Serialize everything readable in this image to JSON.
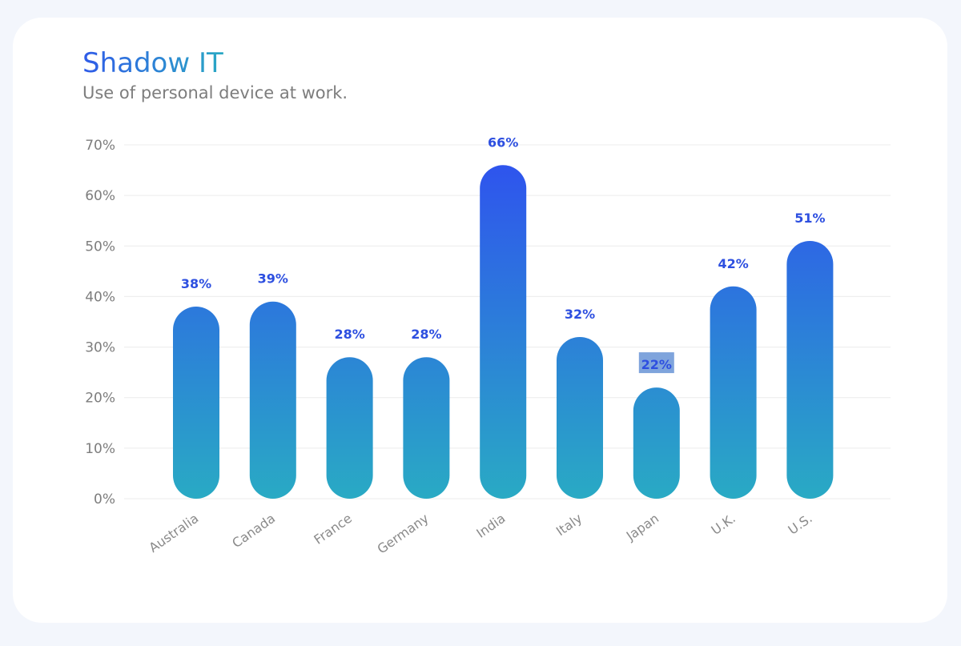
{
  "header": {
    "title": "Shadow IT",
    "subtitle": "Use of personal device at work."
  },
  "colors": {
    "bar_top": "#2f4ff0",
    "bar_bottom": "#29aac4",
    "value_label": "#2d4fe0",
    "highlight": "#7fa4dc",
    "grid": "#ececec"
  },
  "chart_data": {
    "type": "bar",
    "categories": [
      "Australia",
      "Canada",
      "France",
      "Germany",
      "India",
      "Italy",
      "Japan",
      "U.K.",
      "U.S."
    ],
    "values": [
      38,
      39,
      28,
      28,
      66,
      32,
      22,
      42,
      51
    ],
    "value_labels": [
      "38%",
      "39%",
      "28%",
      "28%",
      "66%",
      "32%",
      "22%",
      "42%",
      "51%"
    ],
    "highlighted_label": "Japan",
    "ylim": [
      0,
      70
    ],
    "yticks": [
      0,
      10,
      20,
      30,
      40,
      50,
      60,
      70
    ],
    "ytick_labels": [
      "0%",
      "10%",
      "20%",
      "30%",
      "40%",
      "50%",
      "60%",
      "70%"
    ],
    "grid": true,
    "legend": "none"
  }
}
